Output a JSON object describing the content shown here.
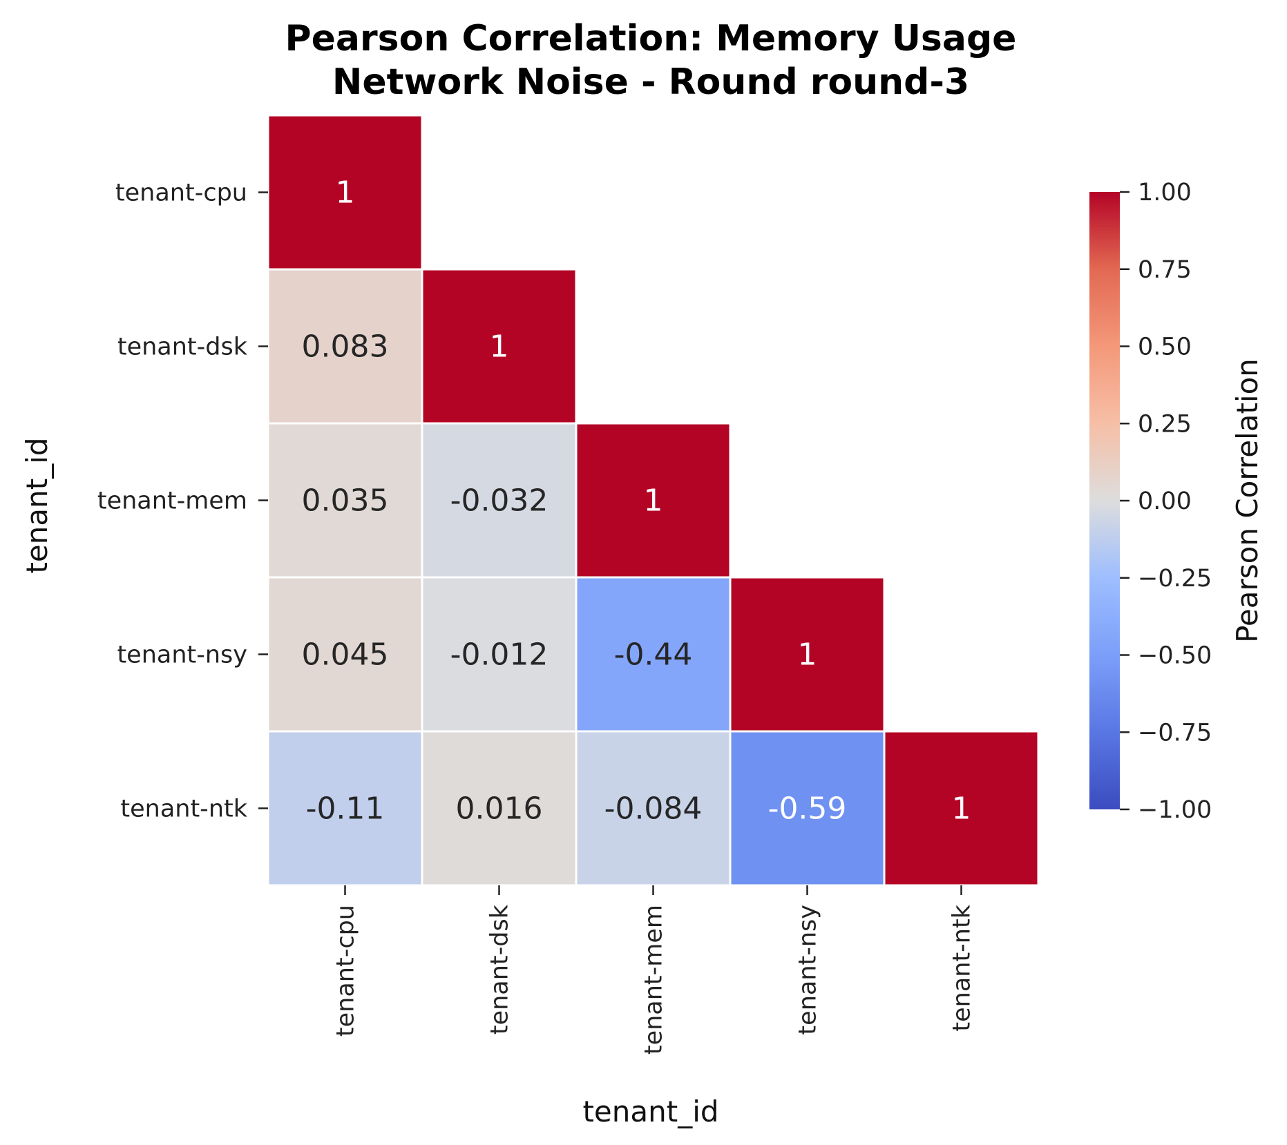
{
  "chart_data": {
    "type": "heatmap",
    "title_line1": "Pearson Correlation: Memory Usage",
    "title_line2": "Network Noise - Round round-3",
    "xlabel": "tenant_id",
    "ylabel": "tenant_id",
    "rows": [
      "tenant-cpu",
      "tenant-dsk",
      "tenant-mem",
      "tenant-nsy",
      "tenant-ntk"
    ],
    "cols": [
      "tenant-cpu",
      "tenant-dsk",
      "tenant-mem",
      "tenant-nsy",
      "tenant-ntk"
    ],
    "mask": "upper-triangle",
    "values": [
      [
        1,
        null,
        null,
        null,
        null
      ],
      [
        0.083,
        1,
        null,
        null,
        null
      ],
      [
        0.035,
        -0.032,
        1,
        null,
        null
      ],
      [
        0.045,
        -0.012,
        -0.44,
        1,
        null
      ],
      [
        -0.11,
        0.016,
        -0.084,
        -0.59,
        1
      ]
    ],
    "labels": [
      [
        "1",
        "",
        "",
        "",
        ""
      ],
      [
        "0.083",
        "1",
        "",
        "",
        ""
      ],
      [
        "0.035",
        "-0.032",
        "1",
        "",
        ""
      ],
      [
        "0.045",
        "-0.012",
        "-0.44",
        "1",
        ""
      ],
      [
        "-0.11",
        "0.016",
        "-0.084",
        "-0.59",
        "1"
      ]
    ],
    "colormap": "coolwarm",
    "vmin": -1.0,
    "vmax": 1.0,
    "colorbar": {
      "label": "Pearson Correlation",
      "ticks": [
        1.0,
        0.75,
        0.5,
        0.25,
        0.0,
        -0.25,
        -0.5,
        -0.75,
        -1.0
      ],
      "tick_labels": [
        "1.00",
        "0.75",
        "0.50",
        "0.25",
        "0.00",
        "−0.25",
        "−0.50",
        "−0.75",
        "−1.00"
      ]
    }
  }
}
